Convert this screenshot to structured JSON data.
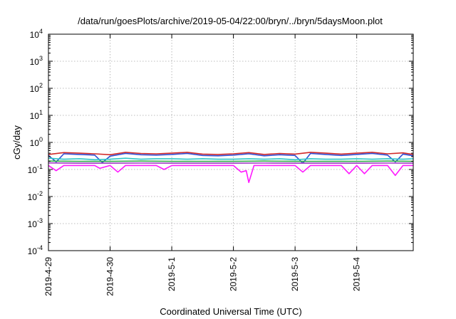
{
  "chart_data": {
    "type": "line",
    "title": "/data/run/goesPlots/archive/2019-05-04/22:00/bryn/../bryn/5daysMoon.plot",
    "xlabel": "Coordinated Universal Time (UTC)",
    "ylabel": "cGy/day",
    "y_scale": "log",
    "ylim": [
      0.0001,
      10000
    ],
    "y_ticks": [
      {
        "value": 0.0001,
        "base": "10",
        "exp": "-4"
      },
      {
        "value": 0.001,
        "base": "10",
        "exp": "-3"
      },
      {
        "value": 0.01,
        "base": "10",
        "exp": "-2"
      },
      {
        "value": 0.1,
        "base": "10",
        "exp": "-1"
      },
      {
        "value": 1,
        "base": "10",
        "exp": "0"
      },
      {
        "value": 10,
        "base": "10",
        "exp": "1"
      },
      {
        "value": 100,
        "base": "10",
        "exp": "2"
      },
      {
        "value": 1000,
        "base": "10",
        "exp": "3"
      },
      {
        "value": 10000,
        "base": "10",
        "exp": "4"
      }
    ],
    "xlim": [
      "2019-04-29 00:00",
      "2019-05-04 22:00"
    ],
    "x_ticks": [
      "2019-4-29",
      "2019-4-30",
      "2019-5-1",
      "2019-5-2",
      "2019-5-3",
      "2019-5-4"
    ],
    "grid": true,
    "series": [
      {
        "color": "#d12a2a",
        "points": [
          [
            "2019-04-29 00:00",
            0.36
          ],
          [
            "2019-04-29 06:00",
            0.42
          ],
          [
            "2019-04-29 12:00",
            0.4
          ],
          [
            "2019-04-29 18:00",
            0.38
          ],
          [
            "2019-04-30 00:00",
            0.35
          ],
          [
            "2019-04-30 06:00",
            0.43
          ],
          [
            "2019-04-30 12:00",
            0.39
          ],
          [
            "2019-04-30 18:00",
            0.38
          ],
          [
            "2019-05-01 00:00",
            0.4
          ],
          [
            "2019-05-01 06:00",
            0.43
          ],
          [
            "2019-05-01 12:00",
            0.37
          ],
          [
            "2019-05-01 18:00",
            0.36
          ],
          [
            "2019-05-02 00:00",
            0.38
          ],
          [
            "2019-05-02 06:00",
            0.42
          ],
          [
            "2019-05-02 12:00",
            0.36
          ],
          [
            "2019-05-02 18:00",
            0.39
          ],
          [
            "2019-05-03 00:00",
            0.37
          ],
          [
            "2019-05-03 06:00",
            0.43
          ],
          [
            "2019-05-03 12:00",
            0.4
          ],
          [
            "2019-05-03 18:00",
            0.37
          ],
          [
            "2019-05-04 00:00",
            0.4
          ],
          [
            "2019-05-04 06:00",
            0.43
          ],
          [
            "2019-05-04 12:00",
            0.38
          ],
          [
            "2019-05-04 18:00",
            0.41
          ],
          [
            "2019-05-04 22:00",
            0.36
          ]
        ]
      },
      {
        "color": "#2f4fd6",
        "points": [
          [
            "2019-04-29 00:00",
            0.33
          ],
          [
            "2019-04-29 03:00",
            0.19
          ],
          [
            "2019-04-29 06:00",
            0.38
          ],
          [
            "2019-04-29 12:00",
            0.36
          ],
          [
            "2019-04-29 18:00",
            0.34
          ],
          [
            "2019-04-29 21:00",
            0.18
          ],
          [
            "2019-04-30 00:00",
            0.31
          ],
          [
            "2019-04-30 06:00",
            0.39
          ],
          [
            "2019-04-30 12:00",
            0.35
          ],
          [
            "2019-04-30 18:00",
            0.34
          ],
          [
            "2019-05-01 00:00",
            0.36
          ],
          [
            "2019-05-01 06:00",
            0.39
          ],
          [
            "2019-05-01 12:00",
            0.33
          ],
          [
            "2019-05-01 18:00",
            0.32
          ],
          [
            "2019-05-02 00:00",
            0.34
          ],
          [
            "2019-05-02 06:00",
            0.38
          ],
          [
            "2019-05-02 12:00",
            0.32
          ],
          [
            "2019-05-02 18:00",
            0.35
          ],
          [
            "2019-05-03 00:00",
            0.33
          ],
          [
            "2019-05-03 03:00",
            0.17
          ],
          [
            "2019-05-03 06:00",
            0.39
          ],
          [
            "2019-05-03 12:00",
            0.36
          ],
          [
            "2019-05-03 18:00",
            0.33
          ],
          [
            "2019-05-04 00:00",
            0.36
          ],
          [
            "2019-05-04 06:00",
            0.39
          ],
          [
            "2019-05-04 12:00",
            0.34
          ],
          [
            "2019-05-04 15:00",
            0.19
          ],
          [
            "2019-05-04 18:00",
            0.37
          ],
          [
            "2019-05-04 22:00",
            0.32
          ]
        ]
      },
      {
        "color": "#2fc7c7",
        "points": [
          [
            "2019-04-29 00:00",
            0.26
          ],
          [
            "2019-04-29 06:00",
            0.24
          ],
          [
            "2019-04-29 12:00",
            0.25
          ],
          [
            "2019-04-29 18:00",
            0.23
          ],
          [
            "2019-04-30 00:00",
            0.24
          ],
          [
            "2019-04-30 06:00",
            0.26
          ],
          [
            "2019-04-30 12:00",
            0.24
          ],
          [
            "2019-04-30 18:00",
            0.25
          ],
          [
            "2019-05-01 00:00",
            0.25
          ],
          [
            "2019-05-01 06:00",
            0.24
          ],
          [
            "2019-05-01 12:00",
            0.25
          ],
          [
            "2019-05-01 18:00",
            0.24
          ],
          [
            "2019-05-02 00:00",
            0.24
          ],
          [
            "2019-05-02 06:00",
            0.25
          ],
          [
            "2019-05-02 12:00",
            0.24
          ],
          [
            "2019-05-02 18:00",
            0.25
          ],
          [
            "2019-05-03 00:00",
            0.23
          ],
          [
            "2019-05-03 06:00",
            0.25
          ],
          [
            "2019-05-03 12:00",
            0.24
          ],
          [
            "2019-05-03 18:00",
            0.24
          ],
          [
            "2019-05-04 00:00",
            0.25
          ],
          [
            "2019-05-04 06:00",
            0.24
          ],
          [
            "2019-05-04 12:00",
            0.25
          ],
          [
            "2019-05-04 18:00",
            0.24
          ],
          [
            "2019-05-04 22:00",
            0.25
          ]
        ]
      },
      {
        "color": "#2fae48",
        "points": [
          [
            "2019-04-29 00:00",
            0.205
          ],
          [
            "2019-04-29 12:00",
            0.2
          ],
          [
            "2019-04-30 00:00",
            0.2
          ],
          [
            "2019-04-30 12:00",
            0.205
          ],
          [
            "2019-05-01 00:00",
            0.2
          ],
          [
            "2019-05-01 12:00",
            0.2
          ],
          [
            "2019-05-02 00:00",
            0.2
          ],
          [
            "2019-05-02 12:00",
            0.205
          ],
          [
            "2019-05-03 00:00",
            0.2
          ],
          [
            "2019-05-03 12:00",
            0.2
          ],
          [
            "2019-05-04 00:00",
            0.2
          ],
          [
            "2019-05-04 12:00",
            0.205
          ],
          [
            "2019-05-04 22:00",
            0.2
          ]
        ]
      },
      {
        "color": "#a33cc7",
        "points": [
          [
            "2019-04-29 00:00",
            0.175
          ],
          [
            "2019-04-29 12:00",
            0.17
          ],
          [
            "2019-04-30 00:00",
            0.17
          ],
          [
            "2019-04-30 12:00",
            0.172
          ],
          [
            "2019-05-01 00:00",
            0.17
          ],
          [
            "2019-05-01 12:00",
            0.17
          ],
          [
            "2019-05-02 00:00",
            0.17
          ],
          [
            "2019-05-02 12:00",
            0.172
          ],
          [
            "2019-05-03 00:00",
            0.17
          ],
          [
            "2019-05-03 12:00",
            0.17
          ],
          [
            "2019-05-04 00:00",
            0.17
          ],
          [
            "2019-05-04 12:00",
            0.172
          ],
          [
            "2019-05-04 22:00",
            0.17
          ]
        ]
      },
      {
        "color": "#ff19ff",
        "points": [
          [
            "2019-04-29 00:00",
            0.14
          ],
          [
            "2019-04-29 03:00",
            0.09
          ],
          [
            "2019-04-29 06:00",
            0.14
          ],
          [
            "2019-04-29 12:00",
            0.14
          ],
          [
            "2019-04-29 18:00",
            0.14
          ],
          [
            "2019-04-29 20:00",
            0.11
          ],
          [
            "2019-04-30 00:00",
            0.14
          ],
          [
            "2019-04-30 03:00",
            0.08
          ],
          [
            "2019-04-30 06:00",
            0.14
          ],
          [
            "2019-04-30 12:00",
            0.14
          ],
          [
            "2019-04-30 18:00",
            0.14
          ],
          [
            "2019-04-30 21:00",
            0.1
          ],
          [
            "2019-05-01 00:00",
            0.14
          ],
          [
            "2019-05-01 06:00",
            0.14
          ],
          [
            "2019-05-01 12:00",
            0.14
          ],
          [
            "2019-05-01 18:00",
            0.14
          ],
          [
            "2019-05-02 00:00",
            0.14
          ],
          [
            "2019-05-02 03:00",
            0.08
          ],
          [
            "2019-05-02 05:00",
            0.09
          ],
          [
            "2019-05-02 06:00",
            0.033
          ],
          [
            "2019-05-02 08:00",
            0.14
          ],
          [
            "2019-05-02 12:00",
            0.14
          ],
          [
            "2019-05-02 18:00",
            0.14
          ],
          [
            "2019-05-03 00:00",
            0.14
          ],
          [
            "2019-05-03 03:00",
            0.08
          ],
          [
            "2019-05-03 06:00",
            0.14
          ],
          [
            "2019-05-03 12:00",
            0.14
          ],
          [
            "2019-05-03 18:00",
            0.14
          ],
          [
            "2019-05-03 21:00",
            0.07
          ],
          [
            "2019-05-04 00:00",
            0.14
          ],
          [
            "2019-05-04 03:00",
            0.07
          ],
          [
            "2019-05-04 06:00",
            0.14
          ],
          [
            "2019-05-04 12:00",
            0.14
          ],
          [
            "2019-05-04 15:00",
            0.06
          ],
          [
            "2019-05-04 18:00",
            0.14
          ],
          [
            "2019-05-04 22:00",
            0.14
          ]
        ]
      }
    ]
  }
}
